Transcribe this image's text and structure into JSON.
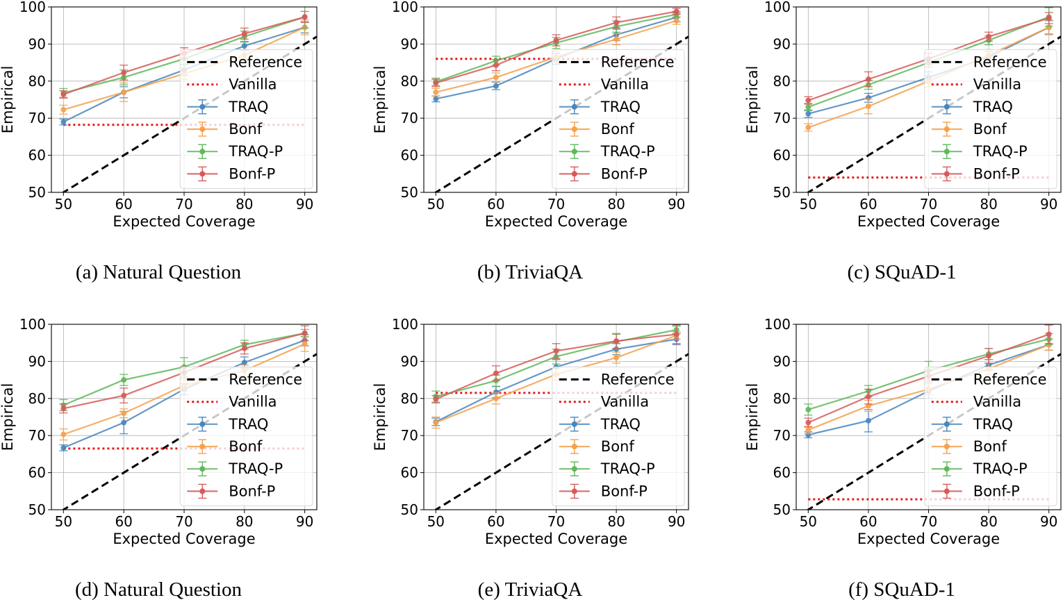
{
  "figure": {
    "legend_labels": [
      "Reference",
      "Vanilla",
      "TRAQ",
      "Bonf",
      "TRAQ-P",
      "Bonf-P"
    ],
    "colors": {
      "reference": "#000000",
      "vanilla": "#e41a1c",
      "TRAQ": "#4a86bd",
      "Bonf": "#f5a14c",
      "TRAQ-P": "#5fb85b",
      "Bonf-P": "#d65a5a"
    }
  },
  "chart_data": [
    {
      "type": "line",
      "caption": "(a) Natural Question",
      "xlabel": "Expected Coverage",
      "ylabel": "Empirical",
      "x": [
        50,
        60,
        70,
        80,
        90
      ],
      "xticks": [
        "50",
        "60",
        "70",
        "80",
        "90"
      ],
      "yticks": [
        "50",
        "60",
        "70",
        "80",
        "90",
        "100"
      ],
      "xlim": [
        48,
        92
      ],
      "ylim": [
        50,
        100
      ],
      "grid": true,
      "legend_position": "center-right",
      "vanilla": 68.2,
      "series": [
        {
          "name": "TRAQ",
          "values": [
            69.0,
            77.0,
            83.0,
            89.5,
            94.5
          ],
          "err": [
            0.8,
            1.5,
            1.5,
            1.2,
            1.5
          ]
        },
        {
          "name": "Bonf",
          "values": [
            72.3,
            77.0,
            82.0,
            87.0,
            94.5
          ],
          "err": [
            1.2,
            2.5,
            1.5,
            1.5,
            2.0
          ]
        },
        {
          "name": "TRAQ-P",
          "values": [
            76.8,
            81.0,
            86.0,
            92.0,
            97.3
          ],
          "err": [
            1.2,
            2.0,
            1.5,
            1.5,
            3.0
          ]
        },
        {
          "name": "Bonf-P",
          "values": [
            76.4,
            82.3,
            87.5,
            92.8,
            97.3
          ],
          "err": [
            1.0,
            2.0,
            1.5,
            1.5,
            1.5
          ]
        }
      ]
    },
    {
      "type": "line",
      "caption": "(b) TriviaQA",
      "xlabel": "Expected Coverage",
      "ylabel": "Empirical",
      "x": [
        50,
        60,
        70,
        80,
        90
      ],
      "xticks": [
        "50",
        "60",
        "70",
        "80",
        "90"
      ],
      "yticks": [
        "50",
        "60",
        "70",
        "80",
        "90",
        "100"
      ],
      "xlim": [
        48,
        92
      ],
      "ylim": [
        50,
        100
      ],
      "grid": true,
      "legend_position": "center-right",
      "vanilla": 86.0,
      "series": [
        {
          "name": "TRAQ",
          "values": [
            75.2,
            78.7,
            86.0,
            92.5,
            97.2
          ],
          "err": [
            0.8,
            1.0,
            1.5,
            1.5,
            1.2
          ]
        },
        {
          "name": "Bonf",
          "values": [
            77.0,
            81.0,
            86.5,
            91.3,
            96.3
          ],
          "err": [
            1.0,
            1.2,
            1.5,
            1.5,
            1.0
          ]
        },
        {
          "name": "TRAQ-P",
          "values": [
            79.8,
            85.5,
            90.3,
            94.7,
            98.0
          ],
          "err": [
            1.0,
            1.2,
            1.5,
            1.5,
            0.8
          ]
        },
        {
          "name": "Bonf-P",
          "values": [
            79.5,
            84.3,
            91.0,
            95.8,
            98.8
          ],
          "err": [
            1.0,
            1.5,
            1.5,
            1.5,
            0.8
          ]
        }
      ]
    },
    {
      "type": "line",
      "caption": "(c) SQuAD-1",
      "xlabel": "Expected Coverage",
      "ylabel": "Empirical",
      "x": [
        50,
        60,
        70,
        80,
        90
      ],
      "xticks": [
        "50",
        "60",
        "70",
        "80",
        "90"
      ],
      "yticks": [
        "50",
        "60",
        "70",
        "80",
        "90",
        "100"
      ],
      "xlim": [
        48,
        92
      ],
      "ylim": [
        50,
        100
      ],
      "grid": true,
      "legend_position": "center-right",
      "vanilla": 54.0,
      "series": [
        {
          "name": "TRAQ",
          "values": [
            71.2,
            75.5,
            81.0,
            86.5,
            94.5
          ],
          "err": [
            1.0,
            1.2,
            1.5,
            1.5,
            1.8
          ]
        },
        {
          "name": "Bonf",
          "values": [
            67.5,
            73.2,
            80.0,
            87.0,
            94.5
          ],
          "err": [
            1.0,
            2.0,
            1.5,
            1.5,
            2.0
          ]
        },
        {
          "name": "TRAQ-P",
          "values": [
            73.0,
            79.0,
            85.0,
            91.0,
            97.3
          ],
          "err": [
            1.0,
            1.2,
            1.2,
            1.2,
            2.5
          ]
        },
        {
          "name": "Bonf-P",
          "values": [
            74.8,
            80.5,
            86.0,
            92.0,
            97.0
          ],
          "err": [
            1.0,
            2.0,
            1.5,
            1.2,
            1.5
          ]
        }
      ]
    },
    {
      "type": "line",
      "caption": "(d) Natural Question",
      "xlabel": "Expected Coverage",
      "ylabel": "Empirical",
      "x": [
        50,
        60,
        70,
        80,
        90
      ],
      "xticks": [
        "50",
        "60",
        "70",
        "80",
        "90"
      ],
      "yticks": [
        "50",
        "60",
        "70",
        "80",
        "90",
        "100"
      ],
      "xlim": [
        48,
        92
      ],
      "ylim": [
        50,
        100
      ],
      "grid": true,
      "legend_position": "center-right",
      "vanilla": 66.5,
      "series": [
        {
          "name": "TRAQ",
          "values": [
            66.7,
            73.5,
            82.5,
            89.7,
            95.7
          ],
          "err": [
            0.8,
            3.0,
            1.5,
            1.5,
            1.5
          ]
        },
        {
          "name": "Bonf",
          "values": [
            70.3,
            76.0,
            83.5,
            87.5,
            94.7
          ],
          "err": [
            1.5,
            1.2,
            1.5,
            1.5,
            2.0
          ]
        },
        {
          "name": "TRAQ-P",
          "values": [
            78.2,
            85.0,
            88.5,
            94.5,
            97.6
          ],
          "err": [
            1.5,
            1.5,
            2.5,
            1.2,
            1.0
          ]
        },
        {
          "name": "Bonf-P",
          "values": [
            77.3,
            80.8,
            87.0,
            93.5,
            97.6
          ],
          "err": [
            1.2,
            2.0,
            1.5,
            1.5,
            2.0
          ]
        }
      ]
    },
    {
      "type": "line",
      "caption": "(e) TriviaQA",
      "xlabel": "Expected Coverage",
      "ylabel": "Empirical",
      "x": [
        50,
        60,
        70,
        80,
        90
      ],
      "xticks": [
        "50",
        "60",
        "70",
        "80",
        "90"
      ],
      "yticks": [
        "50",
        "60",
        "70",
        "80",
        "90",
        "100"
      ],
      "xlim": [
        48,
        92
      ],
      "ylim": [
        50,
        100
      ],
      "grid": true,
      "legend_position": "center-right",
      "vanilla": 81.5,
      "series": [
        {
          "name": "TRAQ",
          "values": [
            73.7,
            81.7,
            88.5,
            93.3,
            96.0
          ],
          "err": [
            1.0,
            1.5,
            2.0,
            1.5,
            1.5
          ]
        },
        {
          "name": "Bonf",
          "values": [
            73.5,
            80.0,
            86.5,
            91.0,
            97.0
          ],
          "err": [
            1.5,
            1.5,
            1.5,
            1.5,
            1.0
          ]
        },
        {
          "name": "TRAQ-P",
          "values": [
            80.5,
            84.8,
            91.3,
            95.3,
            98.5
          ],
          "err": [
            1.5,
            1.5,
            2.0,
            2.0,
            1.0
          ]
        },
        {
          "name": "Bonf-P",
          "values": [
            79.8,
            86.8,
            92.8,
            95.5,
            97.3
          ],
          "err": [
            1.0,
            2.0,
            2.0,
            2.0,
            2.5
          ]
        }
      ]
    },
    {
      "type": "line",
      "caption": "(f) SQuAD-1",
      "xlabel": "Expected Coverage",
      "ylabel": "Empirical",
      "x": [
        50,
        60,
        70,
        80,
        90
      ],
      "xticks": [
        "50",
        "60",
        "70",
        "80",
        "90"
      ],
      "yticks": [
        "50",
        "60",
        "70",
        "80",
        "90",
        "100"
      ],
      "xlim": [
        48,
        92
      ],
      "ylim": [
        50,
        100
      ],
      "grid": true,
      "legend_position": "center-right",
      "vanilla": 52.8,
      "series": [
        {
          "name": "TRAQ",
          "values": [
            70.2,
            74.0,
            82.0,
            89.0,
            94.5
          ],
          "err": [
            0.8,
            3.0,
            2.0,
            1.5,
            1.5
          ]
        },
        {
          "name": "Bonf",
          "values": [
            71.5,
            78.0,
            82.5,
            88.0,
            94.5
          ],
          "err": [
            1.0,
            1.5,
            1.5,
            1.5,
            1.5
          ]
        },
        {
          "name": "TRAQ-P",
          "values": [
            77.0,
            82.0,
            87.5,
            92.0,
            96.0
          ],
          "err": [
            1.5,
            1.5,
            2.5,
            1.5,
            1.5
          ]
        },
        {
          "name": "Bonf-P",
          "values": [
            73.5,
            80.5,
            86.0,
            91.5,
            97.3
          ],
          "err": [
            1.2,
            2.0,
            1.5,
            2.0,
            2.5
          ]
        }
      ]
    }
  ]
}
